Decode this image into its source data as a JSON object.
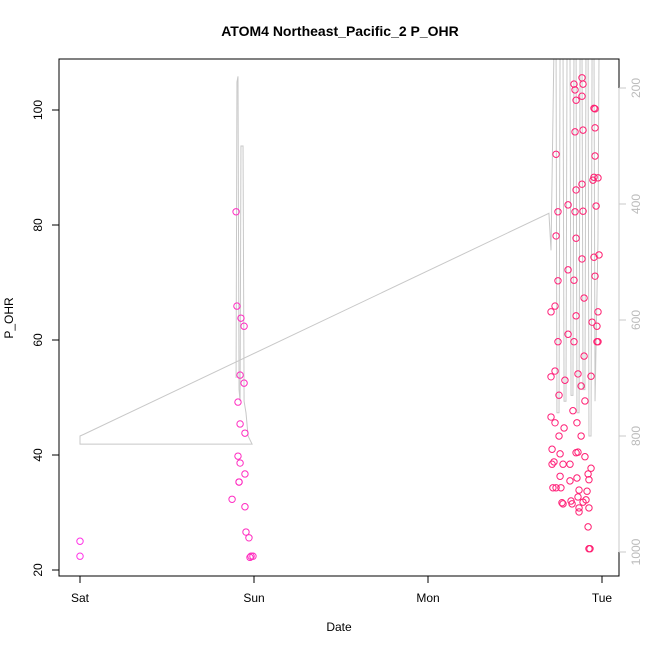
{
  "chart_data": {
    "type": "scatter",
    "title": "ATOM4 Northeast_Pacific_2 P_OHR",
    "xlabel": "Date",
    "ylabel": "P_OHR",
    "x_tick_labels": [
      "Sat",
      "Sun",
      "Mon",
      "Tue"
    ],
    "x_unit": "days since Sat 00:00",
    "xlim": [
      -0.12,
      3.1
    ],
    "ylim": [
      19,
      109
    ],
    "y_ticks": [
      20,
      40,
      60,
      80,
      100
    ],
    "y2_ticks": [
      200,
      400,
      600,
      800,
      1000
    ],
    "y2lim": [
      1040,
      158
    ],
    "colors": {
      "start": "#ff33e6",
      "end": "#ff1e6e",
      "line": "#c8c8c8"
    },
    "points": [
      [
        0,
        22.4
      ],
      [
        0,
        25.0
      ],
      [
        0.897,
        82.3
      ],
      [
        0.902,
        65.9
      ],
      [
        0.925,
        63.8
      ],
      [
        0.943,
        62.4
      ],
      [
        0.92,
        53.9
      ],
      [
        0.943,
        52.5
      ],
      [
        0.908,
        49.2
      ],
      [
        0.92,
        45.4
      ],
      [
        0.948,
        43.8
      ],
      [
        0.908,
        39.8
      ],
      [
        0.92,
        38.6
      ],
      [
        0.948,
        36.7
      ],
      [
        0.914,
        35.3
      ],
      [
        0.914,
        35.3
      ],
      [
        0.874,
        32.3
      ],
      [
        0.948,
        31.0
      ],
      [
        0.954,
        26.6
      ],
      [
        0.971,
        25.6
      ],
      [
        0.983,
        22.4
      ],
      [
        0.994,
        22.4
      ],
      [
        0.977,
        22.2
      ],
      [
        2.736,
        92.3
      ],
      [
        2.747,
        82.3
      ],
      [
        2.736,
        78.1
      ],
      [
        2.747,
        70.3
      ],
      [
        2.73,
        65.9
      ],
      [
        2.707,
        64.9
      ],
      [
        2.747,
        59.7
      ],
      [
        2.73,
        54.6
      ],
      [
        2.707,
        53.6
      ],
      [
        2.753,
        50.4
      ],
      [
        2.707,
        46.6
      ],
      [
        2.73,
        45.6
      ],
      [
        2.753,
        43.3
      ],
      [
        2.713,
        41.0
      ],
      [
        2.759,
        40.2
      ],
      [
        2.724,
        38.8
      ],
      [
        2.713,
        38.4
      ],
      [
        2.759,
        36.3
      ],
      [
        2.718,
        34.3
      ],
      [
        2.736,
        34.3
      ],
      [
        2.764,
        34.3
      ],
      [
        2.77,
        31.7
      ],
      [
        2.776,
        31.5
      ],
      [
        2.805,
        83.5
      ],
      [
        2.805,
        72.2
      ],
      [
        2.805,
        61.0
      ],
      [
        2.787,
        53.0
      ],
      [
        2.782,
        44.7
      ],
      [
        2.776,
        38.4
      ],
      [
        2.816,
        38.4
      ],
      [
        2.816,
        35.5
      ],
      [
        2.822,
        32.0
      ],
      [
        2.839,
        104.5
      ],
      [
        2.845,
        103.5
      ],
      [
        2.851,
        101.7
      ],
      [
        2.845,
        96.2
      ],
      [
        2.851,
        86.1
      ],
      [
        2.845,
        82.3
      ],
      [
        2.851,
        77.7
      ],
      [
        2.839,
        70.4
      ],
      [
        2.851,
        64.2
      ],
      [
        2.839,
        59.7
      ],
      [
        2.862,
        54.1
      ],
      [
        2.833,
        47.7
      ],
      [
        2.856,
        45.6
      ],
      [
        2.862,
        40.5
      ],
      [
        2.851,
        40.4
      ],
      [
        2.856,
        36.0
      ],
      [
        2.868,
        33.9
      ],
      [
        2.862,
        32.7
      ],
      [
        2.868,
        30.8
      ],
      [
        2.868,
        30.1
      ],
      [
        2.828,
        31.5
      ],
      [
        2.885,
        105.6
      ],
      [
        2.891,
        104.5
      ],
      [
        2.885,
        102.4
      ],
      [
        2.891,
        96.5
      ],
      [
        2.885,
        87.1
      ],
      [
        2.891,
        82.4
      ],
      [
        2.885,
        74.1
      ],
      [
        2.897,
        67.3
      ],
      [
        2.897,
        57.2
      ],
      [
        2.88,
        52.0
      ],
      [
        2.902,
        49.4
      ],
      [
        2.88,
        43.3
      ],
      [
        2.902,
        39.7
      ],
      [
        2.92,
        36.7
      ],
      [
        2.914,
        33.7
      ],
      [
        2.891,
        31.8
      ],
      [
        2.908,
        32.2
      ],
      [
        2.92,
        27.5
      ],
      [
        2.925,
        23.7
      ],
      [
        2.931,
        23.7
      ],
      [
        2.954,
        100.3
      ],
      [
        2.96,
        100.2
      ],
      [
        2.948,
        87.8
      ],
      [
        2.954,
        88.3
      ],
      [
        2.96,
        96.9
      ],
      [
        2.96,
        92.0
      ],
      [
        2.966,
        83.3
      ],
      [
        2.954,
        74.4
      ],
      [
        2.983,
        74.8
      ],
      [
        2.96,
        71.1
      ],
      [
        2.977,
        64.9
      ],
      [
        2.943,
        63.1
      ],
      [
        2.971,
        62.4
      ],
      [
        2.971,
        59.7
      ],
      [
        2.977,
        59.7
      ],
      [
        2.937,
        53.7
      ],
      [
        2.937,
        37.7
      ],
      [
        2.925,
        35.7
      ],
      [
        2.925,
        30.8
      ],
      [
        2.977,
        88.2
      ]
    ],
    "depth_line": [
      [
        0.897,
        700
      ],
      [
        0.902,
        190
      ],
      [
        0.908,
        180
      ],
      [
        0.914,
        720
      ],
      [
        0.92,
        740
      ],
      [
        0.925,
        300
      ],
      [
        0.937,
        300
      ],
      [
        0.943,
        740
      ],
      [
        0.954,
        760
      ],
      [
        0.966,
        800
      ],
      [
        0.989,
        814
      ],
      [
        0,
        814
      ],
      [
        0,
        800
      ],
      [
        0.023,
        797
      ],
      [
        2.695,
        416
      ],
      [
        2.707,
        480
      ],
      [
        2.724,
        130
      ],
      [
        2.736,
        130
      ],
      [
        2.741,
        760
      ],
      [
        2.753,
        760
      ],
      [
        2.759,
        130
      ],
      [
        2.776,
        130
      ],
      [
        2.782,
        740
      ],
      [
        2.793,
        740
      ],
      [
        2.799,
        130
      ],
      [
        2.816,
        130
      ],
      [
        2.822,
        730
      ],
      [
        2.833,
        730
      ],
      [
        2.839,
        130
      ],
      [
        2.851,
        130
      ],
      [
        2.856,
        760
      ],
      [
        2.868,
        760
      ],
      [
        2.874,
        130
      ],
      [
        2.885,
        130
      ],
      [
        2.891,
        720
      ],
      [
        2.902,
        720
      ],
      [
        2.908,
        130
      ],
      [
        2.92,
        130
      ],
      [
        2.925,
        800
      ],
      [
        2.937,
        800
      ],
      [
        2.943,
        130
      ],
      [
        2.954,
        130
      ],
      [
        2.96,
        740
      ],
      [
        2.977,
        460
      ],
      [
        2.983,
        130
      ]
    ]
  }
}
